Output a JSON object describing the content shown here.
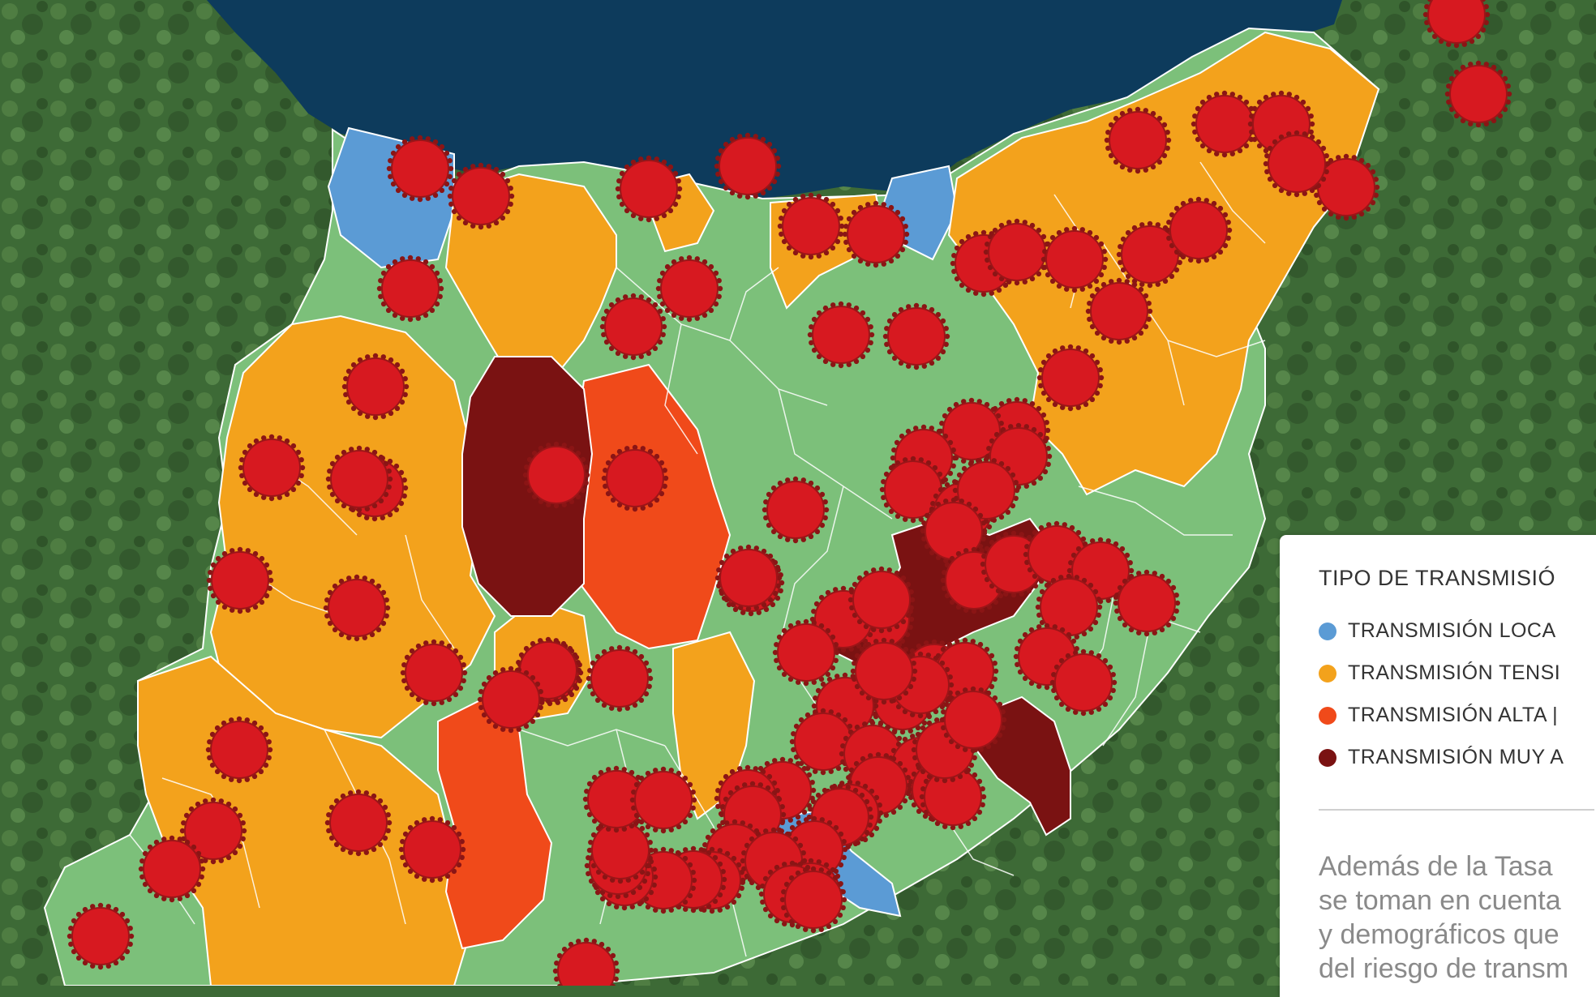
{
  "legend": {
    "title": "TIPO DE TRANSMISIÓ",
    "items": [
      {
        "label": "TRANSMISIÓN LOCA",
        "color": "#5b9bd5"
      },
      {
        "label": "TRANSMISIÓN TENSI",
        "color": "#f3a21c"
      },
      {
        "label": "TRANSMISIÓN ALTA |",
        "color": "#f04a1a"
      },
      {
        "label": "TRANSMISIÓN MUY A",
        "color": "#7a1212"
      }
    ],
    "note_lines": [
      "Además de la Tasa",
      "se toman en cuenta",
      "y demográficos que",
      "del riesgo de transm"
    ]
  },
  "map": {
    "colors": {
      "sea": "#0d3b5c",
      "land": "#3d6a36",
      "low": "#7cc07a",
      "local": "#5b9bd5",
      "tension": "#f3a21c",
      "high": "#f04a1a",
      "very_high": "#7a1212",
      "marker": "#d71920",
      "marker_spike": "#8a1515"
    },
    "icon": "virus-icon"
  }
}
